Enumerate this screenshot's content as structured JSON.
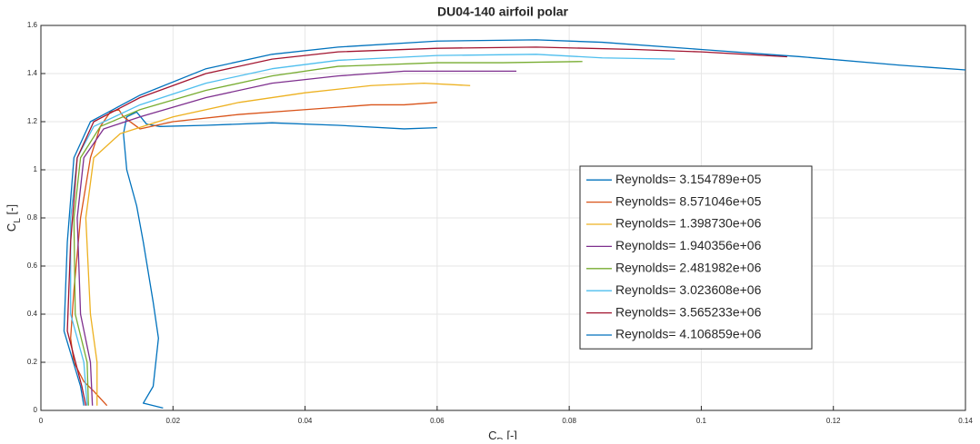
{
  "chart_data": {
    "type": "line",
    "title": "DU04-140 airfoil polar",
    "xlabel": "C_D [-]",
    "ylabel": "C_L [-]",
    "xlim": [
      0,
      0.14
    ],
    "ylim": [
      0,
      1.6
    ],
    "xticks": [
      0,
      0.02,
      0.04,
      0.06,
      0.08,
      0.1,
      0.12,
      0.14
    ],
    "yticks": [
      0,
      0.2,
      0.4,
      0.6,
      0.8,
      1,
      1.2,
      1.4,
      1.6
    ],
    "grid": true,
    "legend": "right",
    "series": [
      {
        "name": "Reynolds= 3.154789e+05",
        "color": "#0072bd",
        "x": [
          0.0185,
          0.0155,
          0.017,
          0.0178,
          0.017,
          0.0155,
          0.0145,
          0.013,
          0.0125,
          0.013,
          0.0145,
          0.016,
          0.018,
          0.025,
          0.035,
          0.045,
          0.055,
          0.06
        ],
        "values": [
          0.01,
          0.03,
          0.1,
          0.3,
          0.45,
          0.7,
          0.85,
          1.0,
          1.15,
          1.22,
          1.24,
          1.19,
          1.18,
          1.185,
          1.195,
          1.185,
          1.17,
          1.175
        ]
      },
      {
        "name": "Reynolds= 8.571046e+05",
        "color": "#d95319",
        "x": [
          0.01,
          0.008,
          0.0065,
          0.005,
          0.0045,
          0.005,
          0.006,
          0.0075,
          0.009,
          0.0105,
          0.0118,
          0.0125,
          0.015,
          0.02,
          0.03,
          0.04,
          0.05,
          0.055,
          0.06
        ],
        "values": [
          0.02,
          0.08,
          0.12,
          0.2,
          0.3,
          0.5,
          0.8,
          1.05,
          1.18,
          1.24,
          1.25,
          1.22,
          1.17,
          1.2,
          1.23,
          1.25,
          1.27,
          1.27,
          1.28
        ]
      },
      {
        "name": "Reynolds= 1.398730e+06",
        "color": "#edb120",
        "x": [
          0.0085,
          0.0085,
          0.0075,
          0.0068,
          0.008,
          0.012,
          0.02,
          0.03,
          0.04,
          0.05,
          0.058,
          0.065
        ],
        "values": [
          0.02,
          0.2,
          0.4,
          0.8,
          1.05,
          1.15,
          1.22,
          1.28,
          1.32,
          1.35,
          1.36,
          1.35
        ]
      },
      {
        "name": "Reynolds= 1.940356e+06",
        "color": "#7e2f8e",
        "x": [
          0.0078,
          0.0075,
          0.006,
          0.0055,
          0.0065,
          0.0095,
          0.015,
          0.025,
          0.035,
          0.045,
          0.055,
          0.065,
          0.072
        ],
        "values": [
          0.02,
          0.2,
          0.4,
          0.8,
          1.05,
          1.17,
          1.22,
          1.3,
          1.36,
          1.39,
          1.41,
          1.41,
          1.41
        ]
      },
      {
        "name": "Reynolds= 2.481982e+06",
        "color": "#77ac30",
        "x": [
          0.0072,
          0.007,
          0.0052,
          0.005,
          0.006,
          0.009,
          0.015,
          0.025,
          0.035,
          0.045,
          0.06,
          0.07,
          0.082
        ],
        "values": [
          0.02,
          0.2,
          0.4,
          0.8,
          1.05,
          1.18,
          1.25,
          1.33,
          1.39,
          1.43,
          1.445,
          1.445,
          1.45
        ]
      },
      {
        "name": "Reynolds= 3.023608e+06",
        "color": "#4dbeee",
        "x": [
          0.007,
          0.0065,
          0.0045,
          0.0045,
          0.0055,
          0.008,
          0.015,
          0.025,
          0.035,
          0.045,
          0.06,
          0.075,
          0.085,
          0.096
        ],
        "values": [
          0.02,
          0.2,
          0.4,
          0.8,
          1.05,
          1.18,
          1.27,
          1.36,
          1.42,
          1.455,
          1.475,
          1.48,
          1.465,
          1.46
        ]
      },
      {
        "name": "Reynolds= 3.565233e+06",
        "color": "#a2142f",
        "x": [
          0.0068,
          0.0062,
          0.004,
          0.0045,
          0.0055,
          0.008,
          0.015,
          0.025,
          0.035,
          0.045,
          0.06,
          0.075,
          0.09,
          0.1,
          0.113
        ],
        "values": [
          0.02,
          0.1,
          0.33,
          0.7,
          1.05,
          1.2,
          1.3,
          1.4,
          1.46,
          1.49,
          1.505,
          1.51,
          1.5,
          1.49,
          1.47
        ]
      },
      {
        "name": "Reynolds= 4.106859e+06",
        "color": "#0072bd",
        "x": [
          0.0065,
          0.006,
          0.0035,
          0.004,
          0.005,
          0.0075,
          0.015,
          0.025,
          0.035,
          0.045,
          0.06,
          0.075,
          0.085,
          0.1,
          0.115,
          0.13,
          0.14
        ],
        "values": [
          0.02,
          0.1,
          0.33,
          0.7,
          1.05,
          1.2,
          1.31,
          1.42,
          1.48,
          1.51,
          1.535,
          1.54,
          1.53,
          1.5,
          1.47,
          1.435,
          1.415
        ]
      }
    ]
  }
}
